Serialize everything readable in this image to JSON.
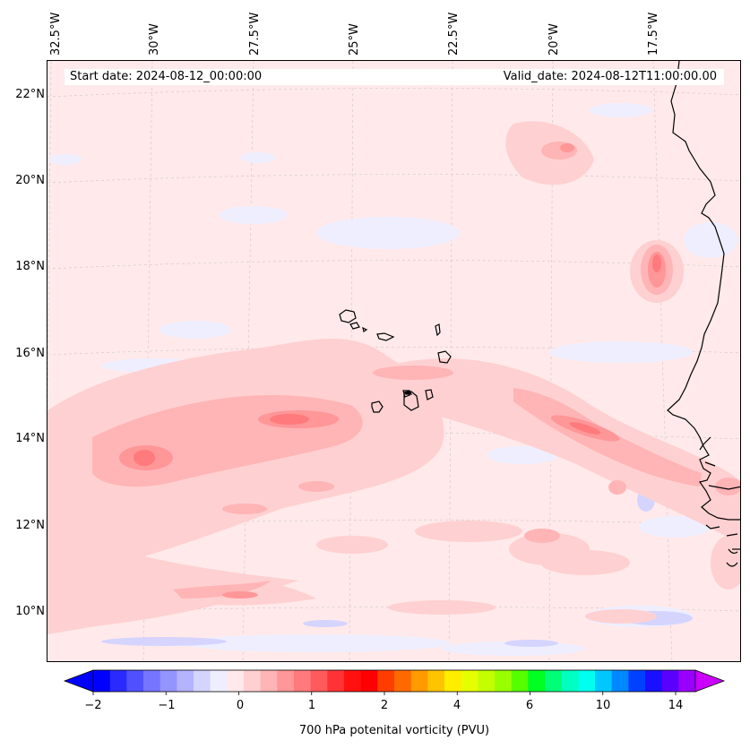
{
  "header": {
    "start_date": "Start date: 2024-08-12_00:00:00",
    "valid_date": "Valid_date: 2024-08-12T11:00:00.00"
  },
  "axes": {
    "longitudes": [
      "32.5°W",
      "30°W",
      "27.5°W",
      "25°W",
      "22.5°W",
      "20°W",
      "17.5°W"
    ],
    "latitudes": [
      "22°N",
      "20°N",
      "18°N",
      "16°N",
      "14°N",
      "12°N",
      "10°N"
    ]
  },
  "colorbar": {
    "label": "700 hPa potenital vorticity (PVU)",
    "ticks": [
      "−2",
      "−1",
      "0",
      "1",
      "2",
      "4",
      "6",
      "10",
      "14"
    ],
    "colors": [
      "#0000ff",
      "#2a2aff",
      "#5050ff",
      "#7575ff",
      "#9494ff",
      "#b3b3ff",
      "#d4d4ff",
      "#eeeeff",
      "#ffe9ea",
      "#ffd0d1",
      "#ffb4b6",
      "#ff9698",
      "#ff7a7c",
      "#ff5a5c",
      "#ff3335",
      "#ff1111",
      "#ff0000",
      "#ff3d00",
      "#ff6a00",
      "#ff9a00",
      "#ffc400",
      "#ffee00",
      "#e6ff00",
      "#c3ff00",
      "#99ff00",
      "#55ff00",
      "#00ff22",
      "#00ff77",
      "#00ffc0",
      "#00ffee",
      "#00c8ff",
      "#0088ff",
      "#0040ff",
      "#1a10ff",
      "#5a00ff",
      "#9a00ff"
    ],
    "under_color": "#0000ff",
    "over_color": "#cc00ff"
  },
  "map": {
    "background_color": "#ffe9ea",
    "coastline_color": "#000000",
    "islands": "Cabo Verde",
    "coast": "West Africa"
  }
}
